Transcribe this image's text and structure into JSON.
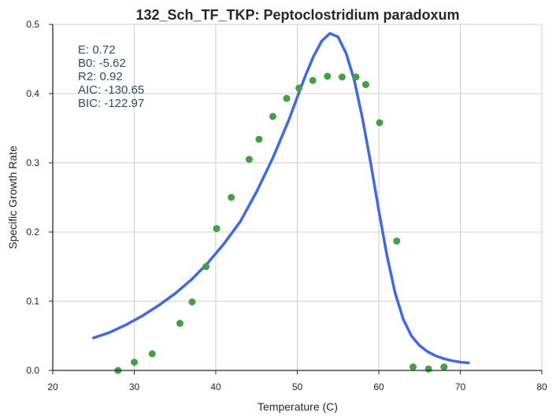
{
  "chart_data": {
    "type": "scatter",
    "title": "132_Sch_TF_TKP: Peptoclostridium paradoxum",
    "xlabel": "Temperature (C)",
    "ylabel": "Specific Growth Rate",
    "xlim": [
      20,
      80
    ],
    "ylim": [
      0,
      0.5
    ],
    "x_ticks": [
      "20",
      "30",
      "40",
      "50",
      "60",
      "70",
      "80"
    ],
    "y_ticks": [
      "0.0",
      "0.1",
      "0.2",
      "0.3",
      "0.4",
      "0.5"
    ],
    "grid": true,
    "colors": {
      "points": "#43a047",
      "fit_line": "#4169e1",
      "grid": "#cccccc",
      "axis": "#262626",
      "stats": "#2f4f4f"
    },
    "series": [
      {
        "kind": "points",
        "x": [
          28.0,
          30.0,
          32.2,
          35.6,
          37.1,
          38.8,
          40.1,
          41.9,
          44.1,
          45.3,
          47.0,
          48.7,
          50.2,
          51.9,
          53.7,
          55.5,
          57.2,
          58.4,
          60.1,
          62.2,
          64.2,
          66.1,
          68.0
        ],
        "y": [
          0.0,
          0.012,
          0.024,
          0.068,
          0.099,
          0.15,
          0.205,
          0.25,
          0.305,
          0.334,
          0.367,
          0.393,
          0.408,
          0.419,
          0.425,
          0.424,
          0.424,
          0.413,
          0.358,
          0.187,
          0.005,
          0.002,
          0.005
        ]
      },
      {
        "kind": "fit_line",
        "x": [
          25,
          27,
          29,
          31,
          33,
          35,
          37,
          39,
          41,
          43,
          45,
          47,
          49,
          50,
          51,
          52,
          53,
          54,
          55,
          56,
          57,
          58,
          59,
          60,
          61,
          62,
          63,
          64,
          65,
          66,
          67,
          68,
          69,
          70,
          71
        ],
        "y": [
          0.047,
          0.055,
          0.066,
          0.079,
          0.094,
          0.111,
          0.131,
          0.155,
          0.183,
          0.215,
          0.258,
          0.307,
          0.363,
          0.395,
          0.426,
          0.454,
          0.476,
          0.487,
          0.482,
          0.458,
          0.419,
          0.364,
          0.3,
          0.231,
          0.166,
          0.112,
          0.074,
          0.05,
          0.036,
          0.027,
          0.021,
          0.017,
          0.014,
          0.012,
          0.011
        ]
      }
    ],
    "stats": [
      "E:  0.72",
      "B0:  -5.62",
      "R2:  0.92",
      "AIC: -130.65",
      "BIC: -122.97"
    ]
  }
}
